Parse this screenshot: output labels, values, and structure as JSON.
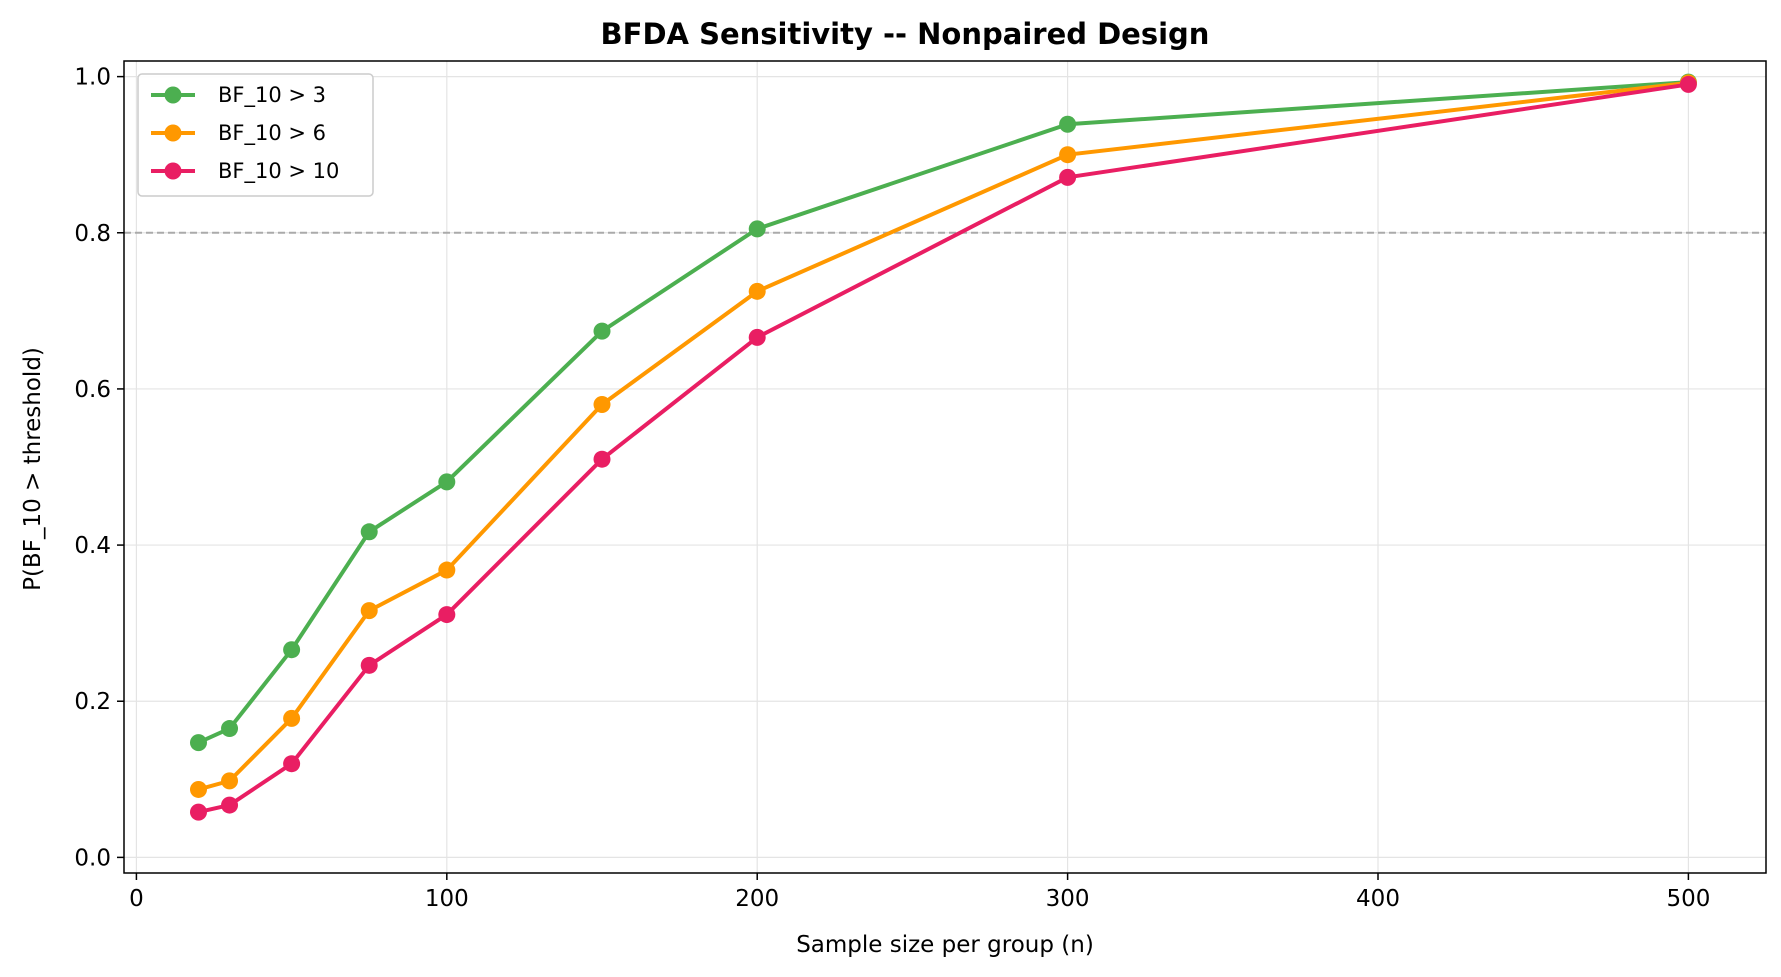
{
  "chart_data": {
    "type": "line",
    "title": "BFDA Sensitivity -- Nonpaired Design",
    "xlabel": "Sample size per group (n)",
    "ylabel": "P(BF_10 > threshold)",
    "xlim": [
      -4,
      525
    ],
    "ylim": [
      -0.02,
      1.02
    ],
    "xticks": [
      0,
      100,
      200,
      300,
      400,
      500
    ],
    "yticks": [
      0.0,
      0.2,
      0.4,
      0.6,
      0.8,
      1.0
    ],
    "xtick_labels": [
      "0",
      "100",
      "200",
      "300",
      "400",
      "500"
    ],
    "ytick_labels": [
      "0.0",
      "0.2",
      "0.4",
      "0.6",
      "0.8",
      "1.0"
    ],
    "grid": true,
    "reference_line": {
      "y": 0.8,
      "style": "dashed",
      "color": "#aaaaaa"
    },
    "legend_position": "top-left",
    "x": [
      20,
      30,
      50,
      75,
      100,
      150,
      200,
      300,
      500
    ],
    "series": [
      {
        "name": "BF_10 > 3",
        "color": "#4caf50",
        "values": [
          0.147,
          0.165,
          0.266,
          0.417,
          0.481,
          0.674,
          0.805,
          0.939,
          0.993
        ]
      },
      {
        "name": "BF_10 > 6",
        "color": "#ff9800",
        "values": [
          0.087,
          0.098,
          0.178,
          0.316,
          0.368,
          0.58,
          0.725,
          0.9,
          0.992
        ]
      },
      {
        "name": "BF_10 > 10",
        "color": "#e91e63",
        "values": [
          0.058,
          0.067,
          0.12,
          0.246,
          0.311,
          0.51,
          0.666,
          0.871,
          0.99
        ]
      }
    ]
  }
}
